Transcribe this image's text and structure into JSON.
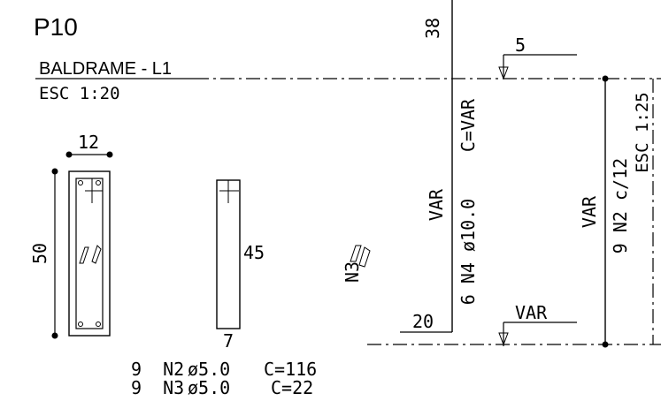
{
  "drawing": {
    "title": "P10",
    "section_name": "BALDRAME - L1",
    "scale_left": "ESC 1:20",
    "scale_right": "ESC 1:25",
    "section": {
      "width": "12",
      "height": "50"
    },
    "stirrup_n2": {
      "height": "45",
      "width": "7"
    },
    "n3_label": "N3",
    "elevation": {
      "top_dim": "38",
      "bottom_dim": "20",
      "var_left": "VAR",
      "bar_label": "6 N4 ø10.0",
      "bar_length": "C=VAR",
      "top_offset": "5",
      "bottom_offset": "VAR",
      "var_right": "VAR",
      "stirrup_spacing": "9 N2 c/12"
    },
    "schedule": [
      {
        "qty_bar": "9  N2",
        "diameter": "ø5.0",
        "length": "C=116"
      },
      {
        "qty_bar": "9  N3",
        "diameter": "ø5.0",
        "length": "C=22"
      }
    ]
  },
  "colors": {
    "ink": "#000000",
    "background": "#ffffff"
  }
}
